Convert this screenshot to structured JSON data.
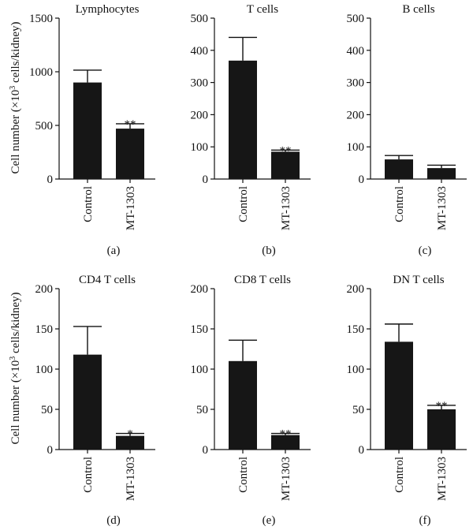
{
  "figure": {
    "ylabel_prefix": "Cell number (×10",
    "ylabel_exp": "3",
    "ylabel_suffix": " cells/kidney)"
  },
  "chart_data": [
    {
      "type": "bar",
      "panel_label": "(a)",
      "title": "Lymphocytes",
      "categories": [
        "Control",
        "MT-1303"
      ],
      "values": [
        900,
        470
      ],
      "errors": [
        115,
        45
      ],
      "significance": [
        "",
        "**"
      ],
      "ylim": [
        0,
        1500
      ],
      "yticks": [
        0,
        500,
        1000,
        1500
      ],
      "grid": false
    },
    {
      "type": "bar",
      "panel_label": "(b)",
      "title": "T cells",
      "categories": [
        "Control",
        "MT-1303"
      ],
      "values": [
        368,
        85
      ],
      "errors": [
        72,
        5
      ],
      "significance": [
        "",
        "**"
      ],
      "ylim": [
        0,
        500
      ],
      "yticks": [
        0,
        100,
        200,
        300,
        400,
        500
      ],
      "grid": false
    },
    {
      "type": "bar",
      "panel_label": "(c)",
      "title": "B cells",
      "categories": [
        "Control",
        "MT-1303"
      ],
      "values": [
        61,
        34
      ],
      "errors": [
        12,
        9
      ],
      "significance": [
        "",
        ""
      ],
      "ylim": [
        0,
        500
      ],
      "yticks": [
        0,
        100,
        200,
        300,
        400,
        500
      ],
      "grid": false
    },
    {
      "type": "bar",
      "panel_label": "(d)",
      "title": "CD4 T cells",
      "categories": [
        "Control",
        "MT-1303"
      ],
      "values": [
        118,
        17
      ],
      "errors": [
        35,
        3
      ],
      "significance": [
        "",
        "*"
      ],
      "ylim": [
        0,
        200
      ],
      "yticks": [
        0,
        50,
        100,
        150,
        200
      ],
      "grid": false
    },
    {
      "type": "bar",
      "panel_label": "(e)",
      "title": "CD8 T cells",
      "categories": [
        "Control",
        "MT-1303"
      ],
      "values": [
        110,
        18
      ],
      "errors": [
        26,
        2
      ],
      "significance": [
        "",
        "**"
      ],
      "ylim": [
        0,
        200
      ],
      "yticks": [
        0,
        50,
        100,
        150,
        200
      ],
      "grid": false
    },
    {
      "type": "bar",
      "panel_label": "(f)",
      "title": "DN T cells",
      "categories": [
        "Control",
        "MT-1303"
      ],
      "values": [
        134,
        50
      ],
      "errors": [
        22,
        5
      ],
      "significance": [
        "",
        "**"
      ],
      "ylim": [
        0,
        200
      ],
      "yticks": [
        0,
        50,
        100,
        150,
        200
      ],
      "grid": false
    }
  ]
}
